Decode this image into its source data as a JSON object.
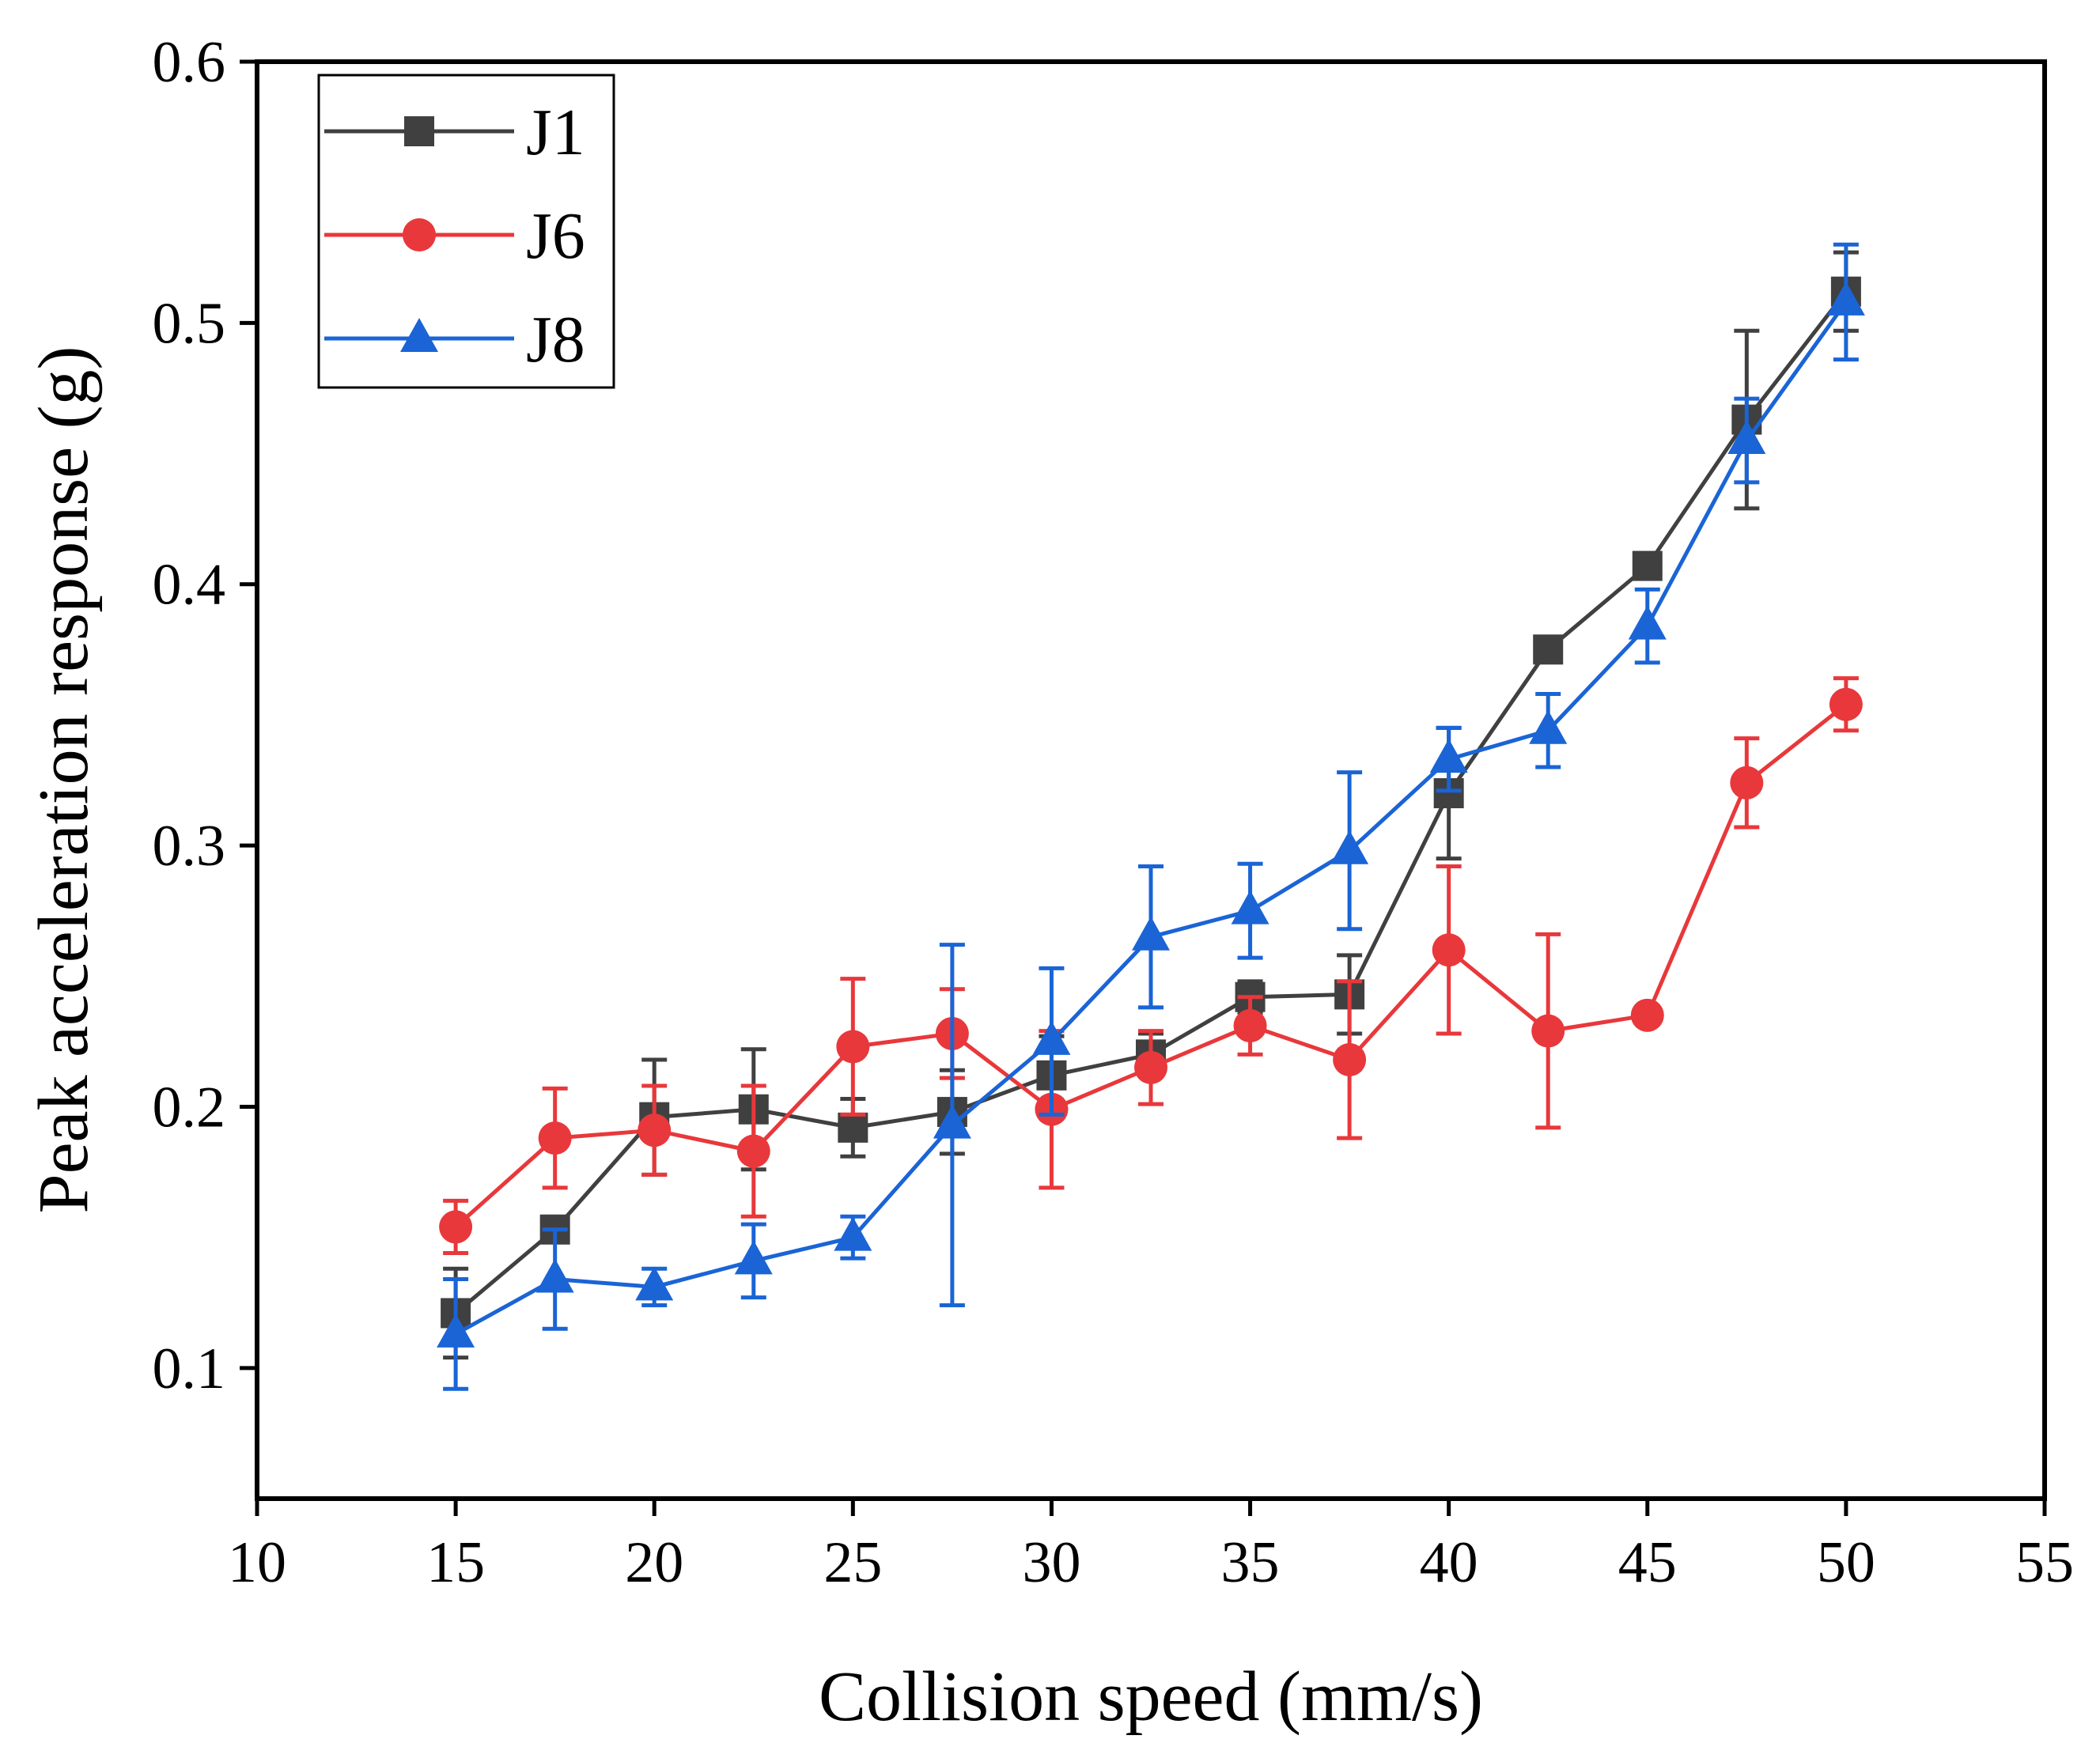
{
  "chart_data": {
    "type": "line",
    "title": "",
    "xlabel": "Collision speed (mm/s)",
    "ylabel": "Peak acceleration response (g)",
    "xlim": [
      10,
      55
    ],
    "ylim": [
      0.05,
      0.6
    ],
    "xticks": [
      10,
      15,
      20,
      25,
      30,
      35,
      40,
      45,
      50,
      55
    ],
    "xtick_labels": [
      "10",
      "15",
      "20",
      "25",
      "30",
      "35",
      "40",
      "45",
      "50",
      "55"
    ],
    "yticks": [
      0.1,
      0.2,
      0.3,
      0.4,
      0.5,
      0.6
    ],
    "ytick_labels": [
      "0.1",
      "0.2",
      "0.3",
      "0.4",
      "0.5",
      "0.6"
    ],
    "grid": false,
    "legend_position": "top-left",
    "x": [
      15,
      17.5,
      20,
      22.5,
      25,
      27.5,
      30,
      32.5,
      35,
      37.5,
      40,
      42.5,
      45,
      47.5,
      50
    ],
    "series": [
      {
        "name": "J1",
        "marker": "square",
        "color": "#404040",
        "values": [
          0.121,
          0.153,
          0.196,
          0.199,
          0.192,
          0.198,
          0.212,
          0.22,
          0.242,
          0.243,
          0.32,
          0.375,
          0.407,
          0.463,
          0.512
        ],
        "errors": [
          0.017,
          0.004,
          0.022,
          0.023,
          0.011,
          0.016,
          0.015,
          0.008,
          0.006,
          0.015,
          0.025,
          0.003,
          0.004,
          0.034,
          0.015
        ]
      },
      {
        "name": "J6",
        "marker": "circle",
        "color": "#e8383b",
        "values": [
          0.154,
          0.188,
          0.191,
          0.183,
          0.223,
          0.228,
          0.199,
          0.215,
          0.231,
          0.218,
          0.26,
          0.229,
          0.235,
          0.324,
          0.354
        ],
        "errors": [
          0.01,
          0.019,
          0.017,
          0.025,
          0.026,
          0.017,
          0.03,
          0.014,
          0.011,
          0.03,
          0.032,
          0.037,
          0.002,
          0.017,
          0.01
        ]
      },
      {
        "name": "J8",
        "marker": "triangle",
        "color": "#1a64d6",
        "values": [
          0.113,
          0.134,
          0.131,
          0.141,
          0.15,
          0.193,
          0.225,
          0.265,
          0.275,
          0.298,
          0.333,
          0.344,
          0.384,
          0.455,
          0.508
        ],
        "errors": [
          0.021,
          0.019,
          0.007,
          0.014,
          0.008,
          0.069,
          0.028,
          0.027,
          0.018,
          0.03,
          0.012,
          0.014,
          0.014,
          0.016,
          0.022
        ]
      }
    ]
  }
}
